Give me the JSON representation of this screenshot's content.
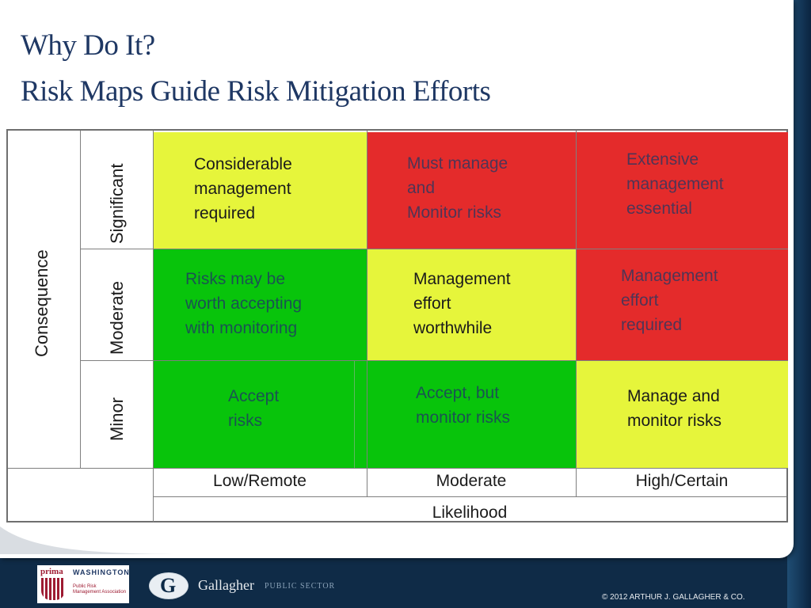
{
  "slide": {
    "title_line1": "Why Do It?",
    "title_line2": "Risk Maps Guide Risk Mitigation Efforts"
  },
  "matrix": {
    "consequence_label": "Consequence",
    "likelihood_label": "Likelihood",
    "rows": [
      "Significant",
      "Moderate",
      "Minor"
    ],
    "columns": [
      "Low/Remote",
      "Moderate",
      "High/Certain"
    ],
    "cells": {
      "significant_low": [
        "Considerable",
        "management",
        "required"
      ],
      "significant_moderate": [
        "Must manage",
        "and",
        "Monitor risks"
      ],
      "significant_high": [
        "Extensive",
        "management",
        "essential"
      ],
      "moderate_low": [
        "Risks may be",
        "worth accepting",
        "with monitoring"
      ],
      "moderate_moderate": [
        "Management",
        "effort",
        "worthwhile"
      ],
      "moderate_high": [
        "Management",
        "effort",
        "required"
      ],
      "minor_low": [
        "Accept",
        "risks"
      ],
      "minor_moderate": [
        "Accept, but",
        "monitor risks"
      ],
      "minor_high": [
        "Manage and",
        "monitor risks"
      ]
    },
    "colors": {
      "yellow": "#e6f53b",
      "red": "#e42b2b",
      "green": "#08c40b"
    }
  },
  "footer": {
    "prima_word": "prima",
    "org_name": "WASHINGTON",
    "org_sub": [
      "Public Risk",
      "Management Association"
    ],
    "gallagher_letter": "G",
    "gallagher": "Gallagher",
    "public_sector": "PUBLIC SECTOR",
    "copyright": "© 2012  ARTHUR J. GALLAGHER & CO."
  }
}
